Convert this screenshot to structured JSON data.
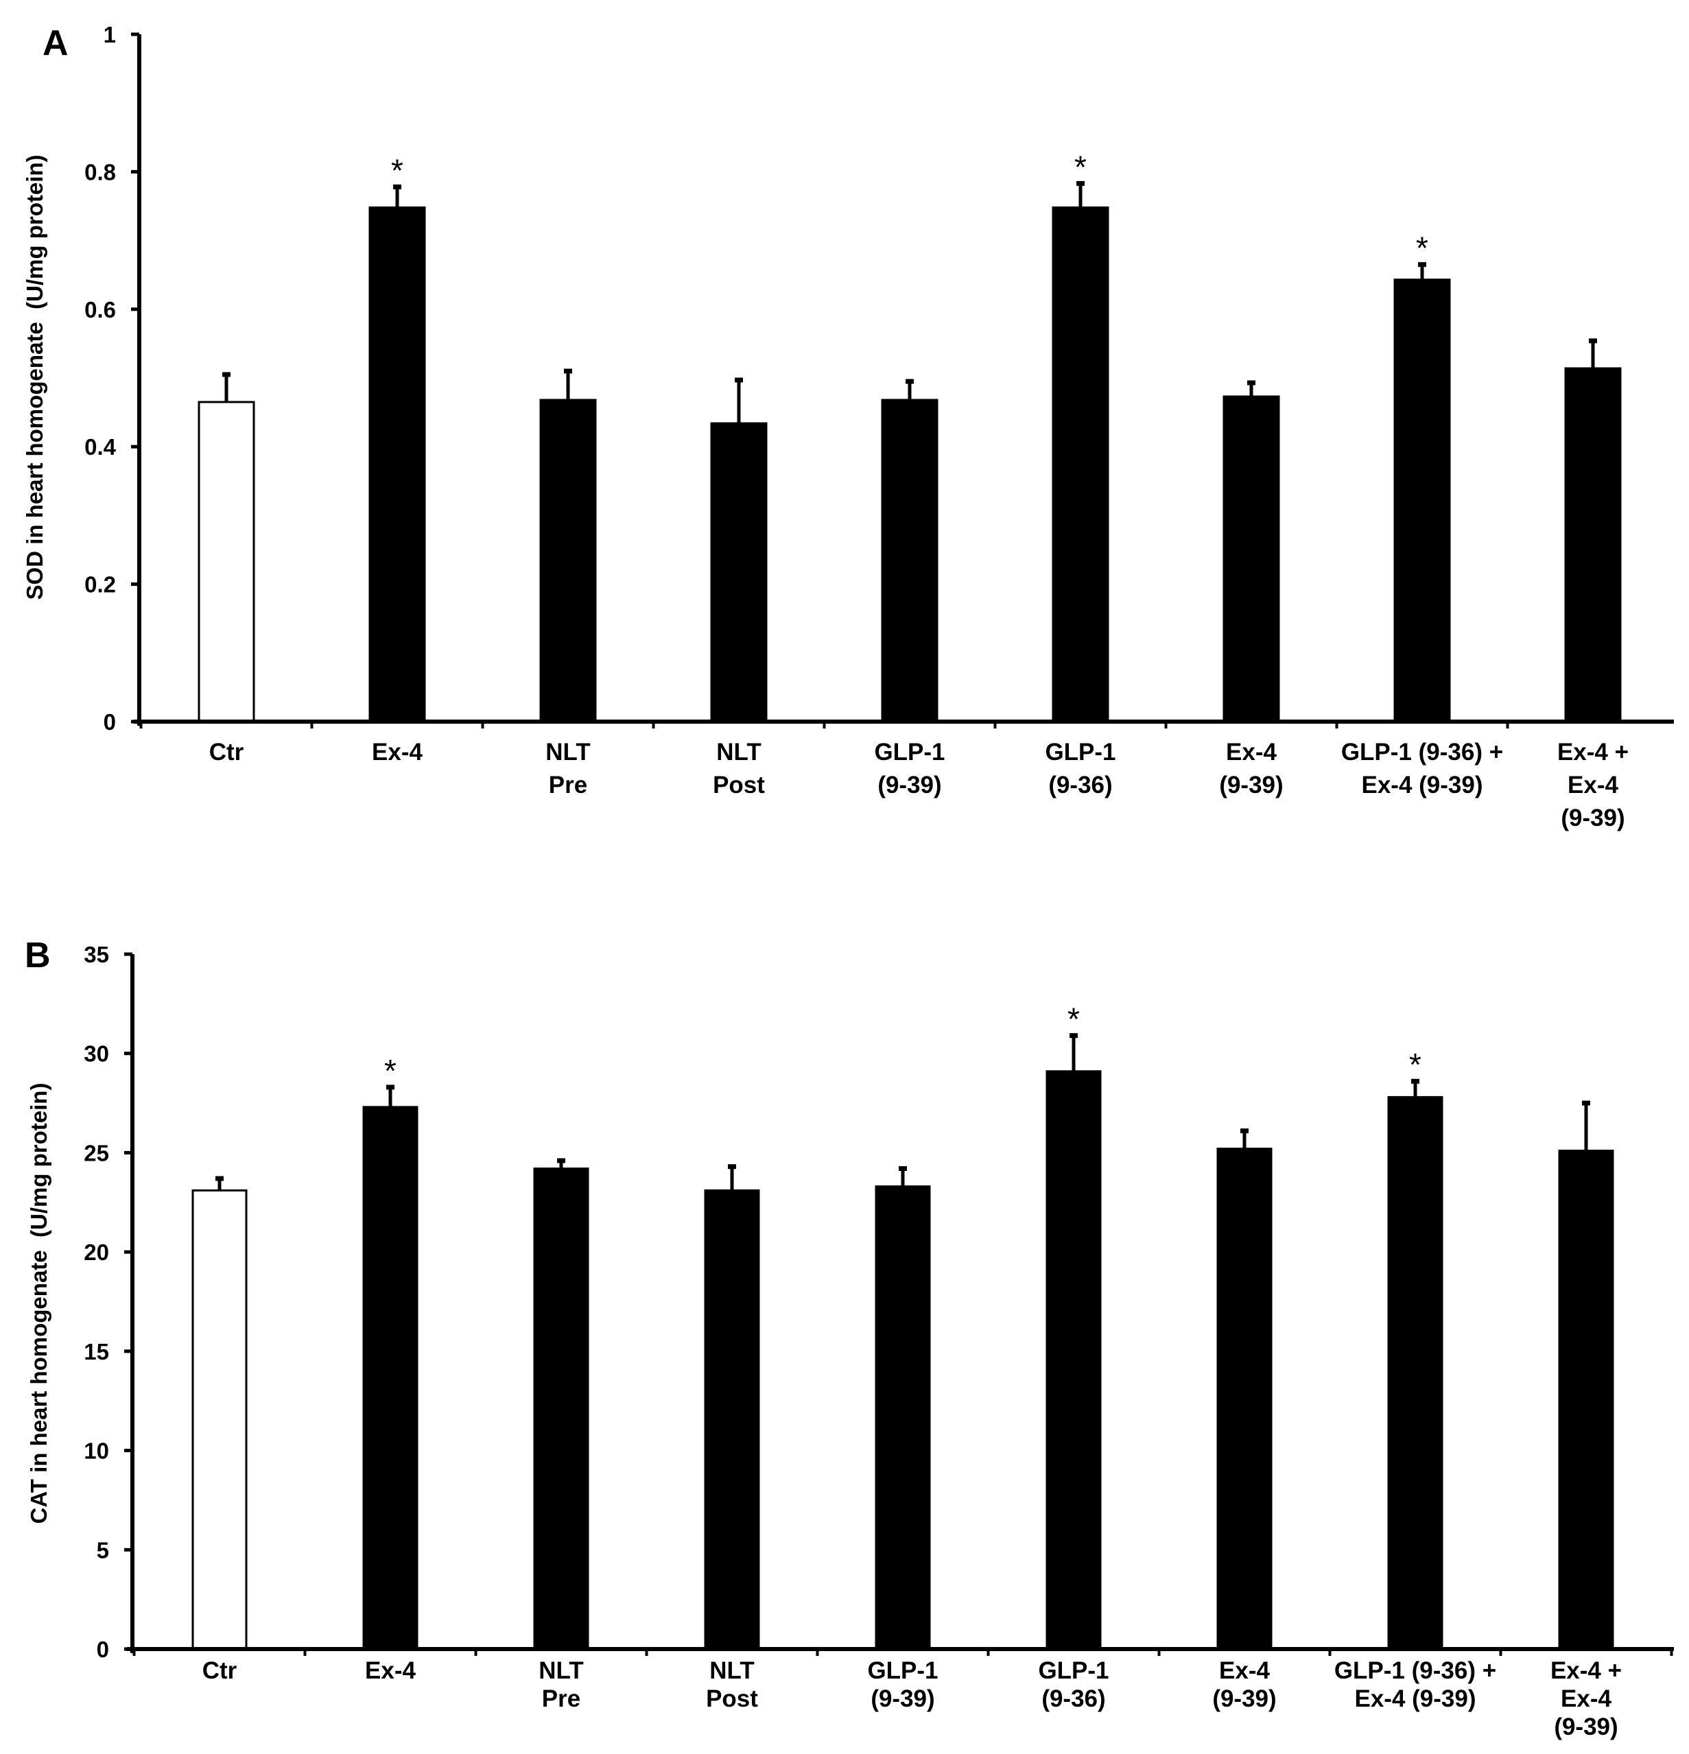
{
  "chart_data": [
    {
      "panel": "A",
      "type": "bar",
      "ylabel": "SOD in heart homogenate  (U/mg protein)",
      "ylim": [
        0,
        1
      ],
      "yticks": [
        "0",
        "0.2",
        "0.4",
        "0.6",
        "0.8",
        "1"
      ],
      "categories": [
        [
          "Ctr"
        ],
        [
          "Ex-4"
        ],
        [
          "NLT",
          "Pre"
        ],
        [
          "NLT",
          "Post"
        ],
        [
          "GLP-1",
          "(9-39)"
        ],
        [
          "GLP-1",
          "(9-36)"
        ],
        [
          "Ex-4",
          "(9-39)"
        ],
        [
          "GLP-1 (9-36) +",
          "Ex-4 (9-39)"
        ],
        [
          "Ex-4 +",
          "Ex-4",
          "(9-39)"
        ]
      ],
      "values": [
        0.465,
        0.748,
        0.468,
        0.434,
        0.468,
        0.748,
        0.473,
        0.643,
        0.514
      ],
      "errors": [
        0.04,
        0.03,
        0.042,
        0.063,
        0.027,
        0.035,
        0.02,
        0.022,
        0.04
      ],
      "significant": [
        false,
        true,
        false,
        false,
        false,
        true,
        false,
        true,
        false
      ],
      "sig_symbol": "*",
      "bar_fill": [
        "#ffffff",
        "#000000",
        "#000000",
        "#000000",
        "#000000",
        "#000000",
        "#000000",
        "#000000",
        "#000000"
      ]
    },
    {
      "panel": "B",
      "type": "bar",
      "ylabel": "CAT in heart homogenate  (U/mg protein)",
      "ylim": [
        0,
        35
      ],
      "yticks": [
        "0",
        "5",
        "10",
        "15",
        "20",
        "25",
        "30",
        "35"
      ],
      "categories": [
        [
          "Ctr"
        ],
        [
          "Ex-4"
        ],
        [
          "NLT",
          "Pre"
        ],
        [
          "NLT",
          "Post"
        ],
        [
          "GLP-1",
          "(9-39)"
        ],
        [
          "GLP-1",
          "(9-36)"
        ],
        [
          "Ex-4",
          "(9-39)"
        ],
        [
          "GLP-1 (9-36) +",
          "Ex-4 (9-39)"
        ],
        [
          "Ex-4 +",
          "Ex-4",
          "(9-39)"
        ]
      ],
      "values": [
        23.1,
        27.3,
        24.2,
        23.1,
        23.3,
        29.1,
        25.2,
        27.8,
        25.1
      ],
      "errors": [
        0.6,
        1.0,
        0.4,
        1.2,
        0.9,
        1.8,
        0.9,
        0.8,
        2.4
      ],
      "significant": [
        false,
        true,
        false,
        false,
        false,
        true,
        false,
        true,
        false
      ],
      "sig_symbol": "*",
      "bar_fill": [
        "#ffffff",
        "#000000",
        "#000000",
        "#000000",
        "#000000",
        "#000000",
        "#000000",
        "#000000",
        "#000000"
      ]
    }
  ]
}
